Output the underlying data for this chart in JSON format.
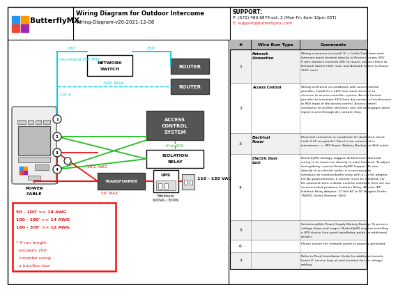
{
  "title": "Wiring Diagram for Outdoor Intercome",
  "subtitle": "Wiring-Diagram-v20-2021-12-08",
  "support_label": "SUPPORT:",
  "support_phone": "P: (571) 480.6879 ext. 2 (Mon-Fri, 6am-10pm EST)",
  "support_email": "E: support@butterflymx.com",
  "bg_color": "#ffffff",
  "cable_cyan": "#00c8e0",
  "cable_green": "#22bb22",
  "cable_red": "#ee1111",
  "text_cyan": "#00c8e0",
  "text_green": "#22aa22",
  "text_red": "#ee1111",
  "rows": [
    {
      "num": "1",
      "type": "Network Connection",
      "comment": "Wiring contractor to install (1) x Cat5e/Cat6 from each Intercom panel location directly to Router if under 300'. If wire distance exceeds 300' to router, connect Panel to Network Switch (300' max) and Network Switch to Router (250' max)."
    },
    {
      "num": "2",
      "type": "Access Control",
      "comment": "Wiring contractor to coordinate with access control provider, install (1) x 18/2 from each Intercom to a/screen to access controller system. Access Control provider to terminate 18/2 from dry contact of touchscreen to REX Input of the access control. Access control contractor to confirm electronic lock will disengages when signal is sent through dry contact relay."
    },
    {
      "num": "3",
      "type": "Electrical Power",
      "comment": "Electrical contractor to coordinate (1) dedicated circuit (with 3-20 receptacle). Panel to be connected to transformer -> UPS Power (Battery Backup) or Wall outlet"
    },
    {
      "num": "4",
      "type": "Electric Door Lock",
      "comment": "ButterflyMX strongly suggest all Electrical Door Lock wiring to be home-run directly to main headend. To adjust timing/delay, contact ButterflyMX Support. To wire directly to an electric strike, it is necessary to introduce an isolation/buffer relay with a 12v/dc adapter. For AC-powered locks, a resistor much be installed. For DC-powered locks, a diode must be installed.\nHere are our recommended products:\nIsolation Relay: Altronix IR5 Isolation Relay\nAdapter: 12 Volt AC to DC Adapter\nDiode: 1N4001 Series\nResistor: (450)"
    },
    {
      "num": "5",
      "type": "",
      "comment": "Uninterruptible Power Supply Battery Backup. To prevent voltage drops and surges, ButterflyMX requires installing a UPS device (see panel installation guide for additional details)."
    },
    {
      "num": "6",
      "type": "",
      "comment": "Please ensure the network switch is properly grounded."
    },
    {
      "num": "7",
      "type": "",
      "comment": "Refer to Panel Installation Guide for additional details. Leave 6' service loop at each location for low voltage cabling."
    }
  ]
}
